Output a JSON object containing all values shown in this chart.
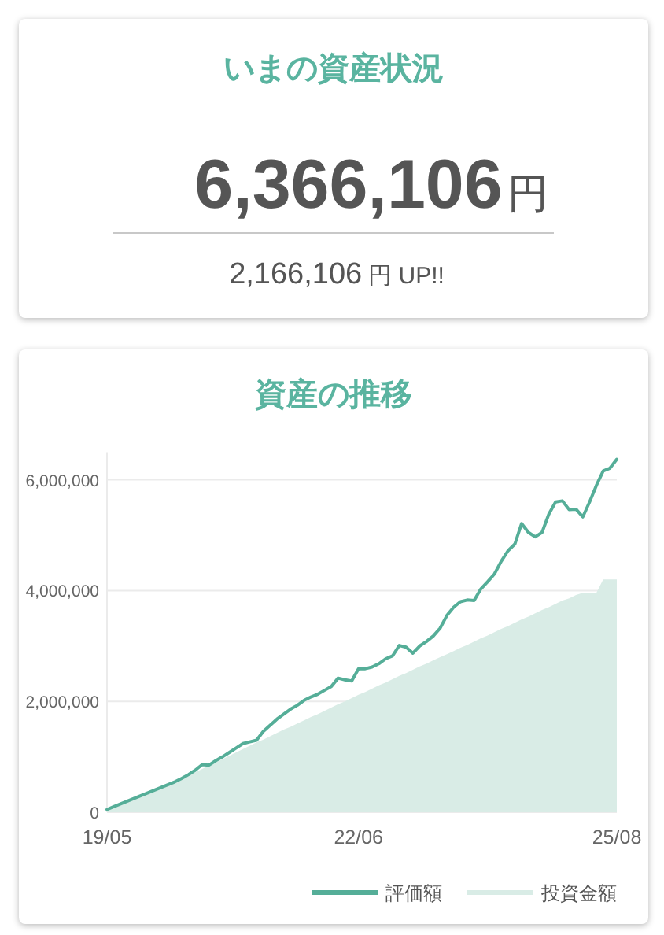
{
  "chart_data": [
    {
      "type": "other",
      "title": "いまの資産状況",
      "annotations": [
        "6,366,106円",
        "2,166,106円 UP!!"
      ]
    },
    {
      "type": "line",
      "title": "資産の推移",
      "categories": [
        "19/05",
        null,
        null,
        null,
        null,
        null,
        null,
        null,
        null,
        null,
        null,
        null,
        null,
        null,
        null,
        null,
        null,
        null,
        null,
        null,
        null,
        null,
        null,
        null,
        null,
        null,
        null,
        null,
        null,
        null,
        null,
        null,
        null,
        null,
        null,
        null,
        null,
        "22/06",
        null,
        null,
        null,
        null,
        null,
        null,
        null,
        null,
        null,
        null,
        null,
        null,
        null,
        null,
        null,
        null,
        null,
        null,
        null,
        null,
        null,
        null,
        null,
        null,
        null,
        null,
        null,
        null,
        null,
        null,
        null,
        null,
        null,
        null,
        null,
        null,
        null,
        "25/08"
      ],
      "series": [
        {
          "name": "評価額",
          "type": "line",
          "color": "#55ae98",
          "values": [
            50000,
            100000,
            150000,
            200000,
            250000,
            300000,
            350000,
            400000,
            450000,
            500000,
            550000,
            610000,
            680000,
            760000,
            860000,
            850000,
            930000,
            1000000,
            1080000,
            1160000,
            1240000,
            1270000,
            1300000,
            1460000,
            1570000,
            1680000,
            1770000,
            1860000,
            1930000,
            2020000,
            2080000,
            2130000,
            2200000,
            2270000,
            2420000,
            2390000,
            2370000,
            2590000,
            2590000,
            2620000,
            2680000,
            2770000,
            2820000,
            3010000,
            2980000,
            2870000,
            3000000,
            3080000,
            3180000,
            3320000,
            3550000,
            3700000,
            3800000,
            3830000,
            3820000,
            4030000,
            4160000,
            4300000,
            4530000,
            4720000,
            4840000,
            5210000,
            5050000,
            4970000,
            5050000,
            5380000,
            5600000,
            5620000,
            5460000,
            5470000,
            5330000,
            5600000,
            5900000,
            6160000,
            6210000,
            6370000
          ]
        },
        {
          "name": "投資金額",
          "type": "area",
          "color": "#d9ece6",
          "values": [
            50000,
            100000,
            140000,
            190000,
            240000,
            290000,
            340000,
            390000,
            440000,
            490000,
            550000,
            600000,
            660000,
            720000,
            780000,
            840000,
            900000,
            960000,
            1020000,
            1080000,
            1140000,
            1200000,
            1260000,
            1310000,
            1370000,
            1430000,
            1490000,
            1540000,
            1600000,
            1660000,
            1720000,
            1770000,
            1830000,
            1890000,
            1950000,
            2000000,
            2060000,
            2120000,
            2170000,
            2230000,
            2290000,
            2340000,
            2400000,
            2460000,
            2510000,
            2570000,
            2630000,
            2680000,
            2740000,
            2800000,
            2850000,
            2910000,
            2970000,
            3020000,
            3080000,
            3140000,
            3190000,
            3250000,
            3310000,
            3360000,
            3420000,
            3480000,
            3530000,
            3590000,
            3650000,
            3700000,
            3760000,
            3820000,
            3860000,
            3920000,
            3960000,
            3960000,
            3960000,
            4200000,
            4200000,
            4200000
          ]
        }
      ],
      "ylim": [
        0,
        6500000
      ],
      "yticks": [
        0,
        {
          "value": 2000000,
          "label": "2,000,000"
        },
        {
          "value": 4000000,
          "label": "4,000,000"
        },
        {
          "value": 6000000,
          "label": "6,000,000"
        }
      ],
      "grid": "y",
      "legend": "bottom right"
    }
  ]
}
